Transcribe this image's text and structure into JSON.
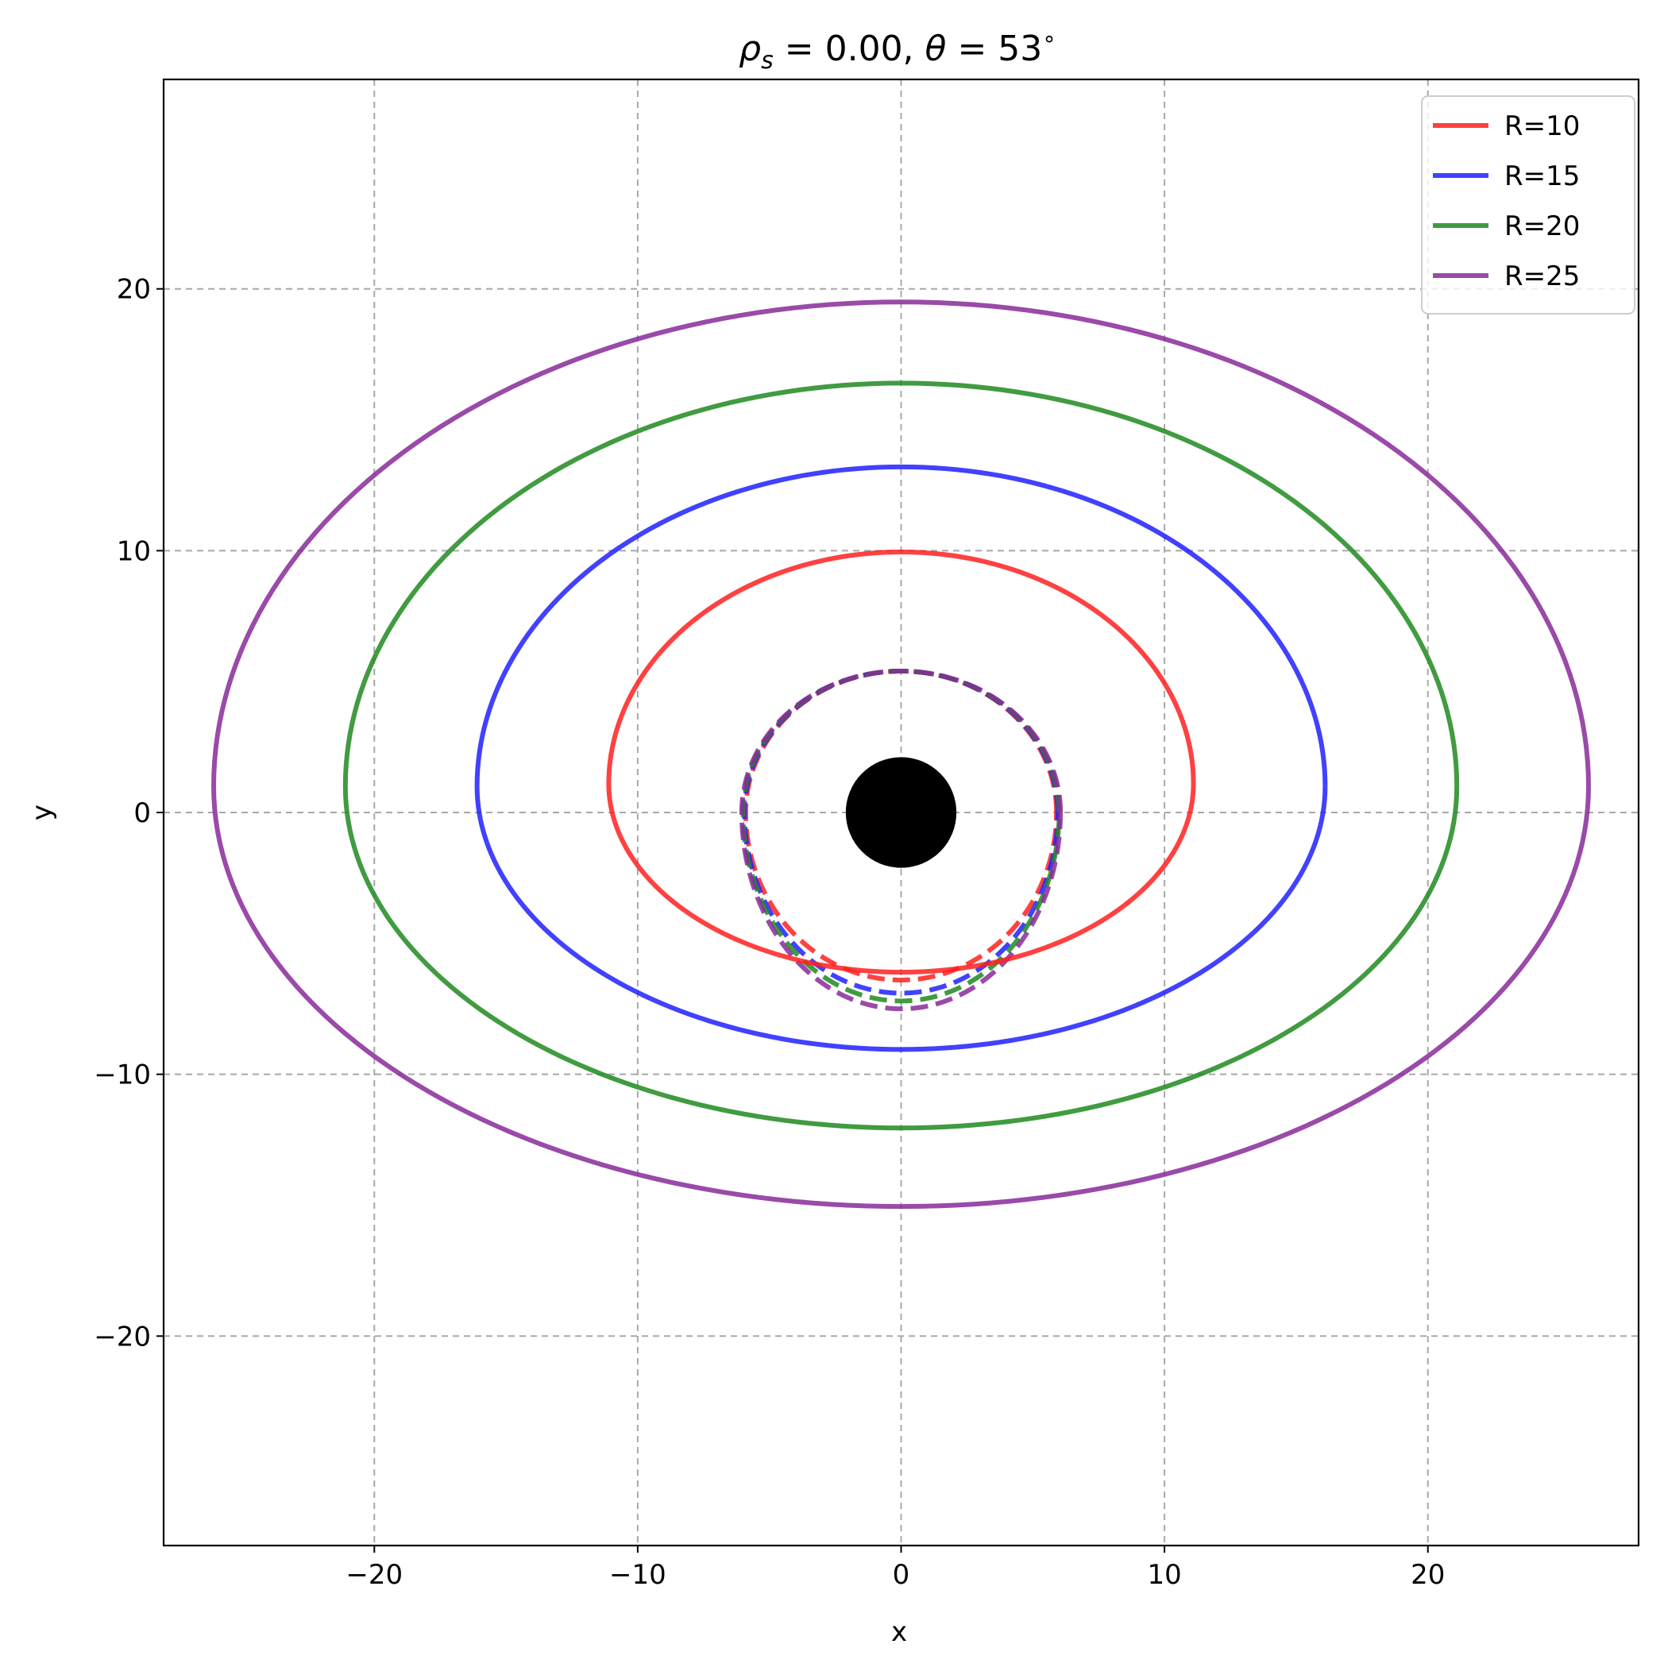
{
  "chart_data": {
    "type": "line",
    "title": "ρs = 0.00,  θ = 53°",
    "title_parts": {
      "rho": "ρ",
      "rho_sub": "s",
      "rho_val": " = 0.00,  ",
      "theta": "θ",
      "theta_val": " = 53",
      "deg": "∘"
    },
    "xlabel": "x",
    "ylabel": "y",
    "xlim": [
      -28,
      28
    ],
    "ylim": [
      -28,
      28
    ],
    "xticks": [
      -20,
      -10,
      0,
      10,
      20
    ],
    "yticks": [
      -20,
      -10,
      0,
      10,
      20
    ],
    "grid": true,
    "legend_position": "top-right",
    "central_body": {
      "x": 0,
      "y": 0,
      "radius": 2.1,
      "color": "#000000"
    },
    "series": [
      {
        "name": "R=10",
        "color": "#ff2020",
        "direct": {
          "a": 11.1,
          "yc": 1.1,
          "ytop": 9.95,
          "ybot": -6.1
        },
        "secondary": {
          "r": 5.9,
          "ytop": 5.4,
          "ybot": -6.4
        }
      },
      {
        "name": "R=15",
        "color": "#2020ff",
        "direct": {
          "a": 16.1,
          "yc": 1.0,
          "ytop": 13.2,
          "ybot": -9.05
        },
        "secondary": {
          "r": 5.95,
          "ytop": 5.4,
          "ybot": -6.9
        }
      },
      {
        "name": "R=20",
        "color": "#208a20",
        "direct": {
          "a": 21.1,
          "yc": 1.0,
          "ytop": 16.4,
          "ybot": -12.05
        },
        "secondary": {
          "r": 6.0,
          "ytop": 5.4,
          "ybot": -7.2
        }
      },
      {
        "name": "R=25",
        "color": "#882a99",
        "direct": {
          "a": 26.1,
          "yc": 1.0,
          "ytop": 19.5,
          "ybot": -15.05
        },
        "secondary": {
          "r": 6.05,
          "ytop": 5.4,
          "ybot": -7.5
        }
      }
    ]
  }
}
